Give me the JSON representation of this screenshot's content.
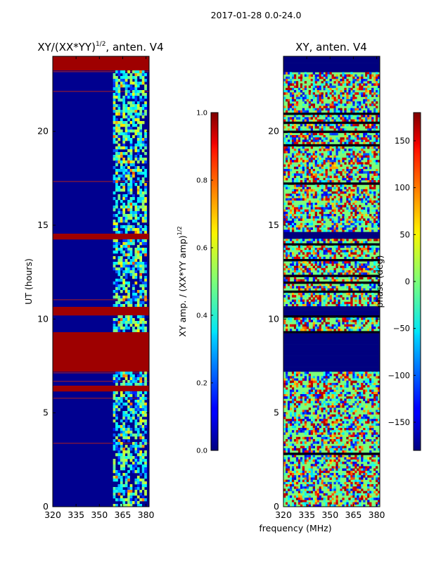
{
  "figure": {
    "suptitle": "2017-01-28 0.0-24.0",
    "xlabel": "frequency (MHz)"
  },
  "chart_data": [
    {
      "type": "heatmap",
      "title": "XY/(XX*YY)^{1/2}, anten. V4",
      "title_main": "XY/(XX*YY)",
      "title_sup": "1/2",
      "title_rest": ", anten. V4",
      "ylabel": "UT (hours)",
      "xlim": [
        320,
        382
      ],
      "ylim": [
        0,
        24
      ],
      "xticks": [
        320,
        335,
        350,
        365,
        380
      ],
      "yticks": [
        0,
        5,
        10,
        15,
        20
      ],
      "colormap": "jet",
      "colorbar": {
        "label_main": "XY amp. / (XX*YY amp)",
        "label_sup": "1/2",
        "range": [
          0.0,
          1.0
        ],
        "ticks": [
          "0.0",
          "0.2",
          "0.4",
          "0.6",
          "0.8",
          "1.0"
        ]
      },
      "bright_band_mhz": [
        360,
        380
      ],
      "saturated_hours": [
        [
          7.2,
          9.3
        ],
        [
          10.2,
          10.7
        ],
        [
          14.3,
          14.6
        ],
        [
          23.2,
          24.0
        ],
        [
          6.2,
          6.4
        ]
      ]
    },
    {
      "type": "heatmap",
      "title": "XY, anten. V4",
      "xlim": [
        320,
        382
      ],
      "ylim": [
        0,
        24
      ],
      "xticks": [
        320,
        335,
        350,
        365,
        380
      ],
      "yticks": [
        0,
        5,
        10,
        15,
        20
      ],
      "colormap": "jet",
      "colorbar": {
        "label": "phase (deg)",
        "range": [
          -180,
          180
        ],
        "ticks": [
          "150",
          "100",
          "50",
          "0",
          "−50",
          "−100",
          "−150"
        ],
        "tick_values": [
          150,
          100,
          50,
          0,
          -50,
          -100,
          -150
        ]
      },
      "flagged_hours": [
        [
          7.2,
          9.3
        ],
        [
          10.2,
          10.7
        ],
        [
          14.3,
          14.6
        ],
        [
          23.2,
          24.0
        ]
      ]
    }
  ]
}
